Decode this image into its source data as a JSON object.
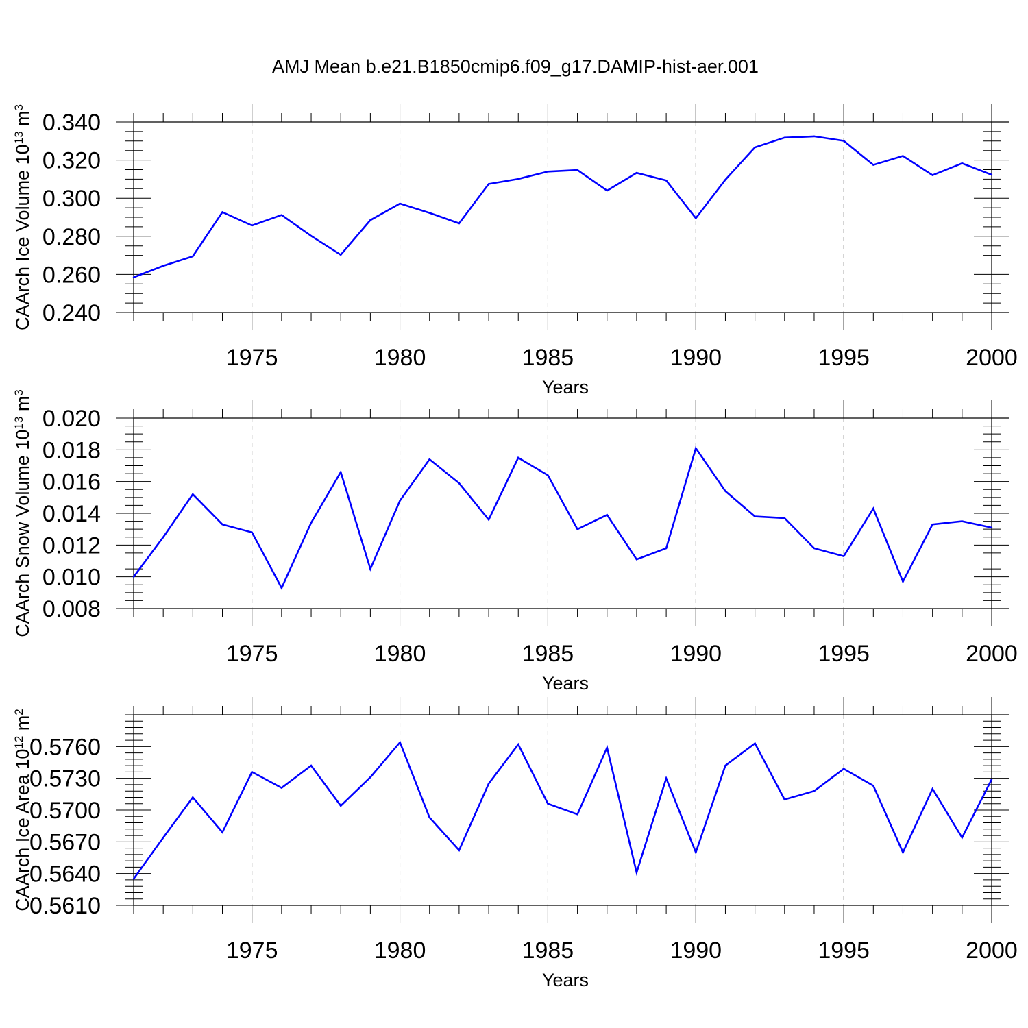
{
  "figure": {
    "title": "AMJ Mean b.e21.B1850cmip6.f09_g17.DAMIP-hist-aer.001",
    "line_color": "#0000ff"
  },
  "chart_data": [
    {
      "type": "line",
      "title": "AMJ Mean b.e21.B1850cmip6.f09_g17.DAMIP-hist-aer.001",
      "xlabel": "Years",
      "ylabel": {
        "text": "CAArch Ice Volume 10",
        "exp": "13",
        "unit": " m",
        "unit_exp": "3"
      },
      "xlim": [
        1971,
        2000
      ],
      "ylim": [
        0.24,
        0.34
      ],
      "xticks": [
        1975,
        1980,
        1985,
        1990,
        1995,
        2000
      ],
      "yticks": [
        "0.240",
        "0.260",
        "0.280",
        "0.300",
        "0.320",
        "0.340"
      ],
      "y_minor_step": 0.005,
      "dashed_gridlines_x": [
        1975,
        1980,
        1985,
        1990,
        1995
      ],
      "x": [
        1971,
        1972,
        1973,
        1974,
        1975,
        1976,
        1977,
        1978,
        1979,
        1980,
        1981,
        1982,
        1983,
        1984,
        1985,
        1986,
        1987,
        1988,
        1989,
        1990,
        1991,
        1992,
        1993,
        1994,
        1995,
        1996,
        1997,
        1998,
        1999,
        2000
      ],
      "values": [
        0.2585,
        0.2645,
        0.2695,
        0.2927,
        0.2857,
        0.2912,
        0.2802,
        0.2703,
        0.2885,
        0.2972,
        0.2923,
        0.2868,
        0.3075,
        0.3101,
        0.314,
        0.3148,
        0.304,
        0.3133,
        0.3093,
        0.2895,
        0.3097,
        0.3267,
        0.3318,
        0.3325,
        0.3301,
        0.3175,
        0.3222,
        0.3121,
        0.3183,
        0.3123
      ],
      "grid": false,
      "legend": "none"
    },
    {
      "type": "line",
      "xlabel": "Years",
      "ylabel": {
        "text": "CAArch Snow Volume 10",
        "exp": "13",
        "unit": " m",
        "unit_exp": "3"
      },
      "xlim": [
        1971,
        2000
      ],
      "ylim": [
        0.008,
        0.02
      ],
      "xticks": [
        1975,
        1980,
        1985,
        1990,
        1995,
        2000
      ],
      "yticks": [
        "0.008",
        "0.010",
        "0.012",
        "0.014",
        "0.016",
        "0.018",
        "0.020"
      ],
      "y_minor_step": 0.0005,
      "dashed_gridlines_x": [
        1975,
        1980,
        1985,
        1990,
        1995
      ],
      "x": [
        1971,
        1972,
        1973,
        1974,
        1975,
        1976,
        1977,
        1978,
        1979,
        1980,
        1981,
        1982,
        1983,
        1984,
        1985,
        1986,
        1987,
        1988,
        1989,
        1990,
        1991,
        1992,
        1993,
        1994,
        1995,
        1996,
        1997,
        1998,
        1999,
        2000
      ],
      "values": [
        0.01,
        0.0125,
        0.0152,
        0.0133,
        0.0128,
        0.0093,
        0.0134,
        0.0166,
        0.0105,
        0.0148,
        0.0174,
        0.0159,
        0.0136,
        0.0175,
        0.0164,
        0.013,
        0.0139,
        0.0111,
        0.0118,
        0.0181,
        0.0154,
        0.0138,
        0.0137,
        0.0118,
        0.0113,
        0.0143,
        0.0097,
        0.0133,
        0.0135,
        0.0131
      ],
      "grid": false,
      "legend": "none"
    },
    {
      "type": "line",
      "xlabel": "Years",
      "ylabel": {
        "text": "CAArch Ice Area 10",
        "exp": "12",
        "unit": " m",
        "unit_exp": "2"
      },
      "xlim": [
        1971,
        2000
      ],
      "ylim": [
        0.561,
        0.579
      ],
      "xticks": [
        1975,
        1980,
        1985,
        1990,
        1995,
        2000
      ],
      "yticks": [
        "0.5610",
        "0.5640",
        "0.5670",
        "0.5700",
        "0.5730",
        "0.5760"
      ],
      "y_minor_step": 0.0006,
      "dashed_gridlines_x": [
        1975,
        1980,
        1985,
        1990,
        1995
      ],
      "x": [
        1971,
        1972,
        1973,
        1974,
        1975,
        1976,
        1977,
        1978,
        1979,
        1980,
        1981,
        1982,
        1983,
        1984,
        1985,
        1986,
        1987,
        1988,
        1989,
        1990,
        1991,
        1992,
        1993,
        1994,
        1995,
        1996,
        1997,
        1998,
        1999,
        2000
      ],
      "values": [
        0.5635,
        0.5674,
        0.5712,
        0.5679,
        0.5736,
        0.5721,
        0.5742,
        0.5704,
        0.5731,
        0.5764,
        0.5693,
        0.5662,
        0.5725,
        0.5762,
        0.5706,
        0.5696,
        0.5759,
        0.5641,
        0.573,
        0.566,
        0.5742,
        0.5763,
        0.571,
        0.5718,
        0.5739,
        0.5723,
        0.566,
        0.572,
        0.5674,
        0.5729
      ],
      "grid": false,
      "legend": "none"
    }
  ]
}
